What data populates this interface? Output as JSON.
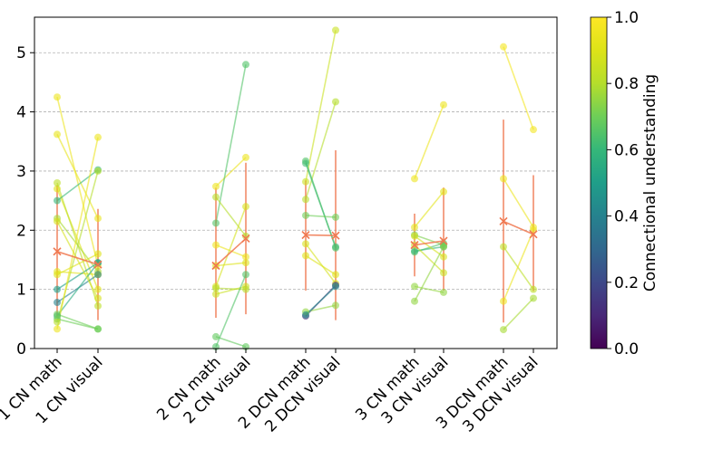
{
  "chart_data": {
    "type": "scatter",
    "ylim": [
      0,
      5.6
    ],
    "y_ticks": [
      0,
      1,
      2,
      3,
      4,
      5
    ],
    "grid": "horizontal-dashed",
    "categories": [
      "1 CN math",
      "1 CN visual",
      "2 CN math",
      "2 CN visual",
      "2 DCN math",
      "2 DCN visual",
      "3 CN math",
      "3 CN visual",
      "3 DCN math",
      "3 DCN visual"
    ],
    "colorbar": {
      "label": "Connectional understanding",
      "colormap": "viridis",
      "range": [
        0,
        1
      ],
      "ticks": [
        "0.0",
        "0.2",
        "0.4",
        "0.6",
        "0.8",
        "1.0"
      ]
    },
    "mean_color": "#f07850",
    "groups": [
      {
        "pair": [
          0,
          1
        ],
        "pairs": [
          {
            "c": 0.95,
            "y1": 4.25,
            "y2": 1.4
          },
          {
            "c": 0.93,
            "y1": 3.62,
            "y2": 2.2
          },
          {
            "c": 0.9,
            "y1": 2.7,
            "y2": 1.0
          },
          {
            "c": 0.82,
            "y1": 2.8,
            "y2": 0.72
          },
          {
            "c": 0.6,
            "y1": 2.5,
            "y2": 3.02
          },
          {
            "c": 0.78,
            "y1": 2.2,
            "y2": 1.3
          },
          {
            "c": 0.92,
            "y1": 1.3,
            "y2": 1.25
          },
          {
            "c": 0.9,
            "y1": 1.25,
            "y2": 1.6
          },
          {
            "c": 0.5,
            "y1": 1.0,
            "y2": 1.45
          },
          {
            "c": 0.4,
            "y1": 0.78,
            "y2": 1.25
          },
          {
            "c": 0.55,
            "y1": 0.55,
            "y2": 1.45
          },
          {
            "c": 0.7,
            "y1": 0.5,
            "y2": 0.33
          },
          {
            "c": 0.8,
            "y1": 0.45,
            "y2": 3.0
          },
          {
            "c": 0.95,
            "y1": 0.33,
            "y2": 3.57
          },
          {
            "c": 0.88,
            "y1": 2.15,
            "y2": 0.85
          },
          {
            "c": 0.7,
            "y1": 0.58,
            "y2": 0.33
          }
        ],
        "mean": [
          1.64,
          1.42
        ],
        "err": [
          [
            0.52,
            2.76
          ],
          [
            0.48,
            2.36
          ]
        ]
      },
      {
        "pair": [
          2,
          3
        ],
        "pairs": [
          {
            "c": 0.95,
            "y1": 2.74,
            "y2": 3.23
          },
          {
            "c": 0.65,
            "y1": 2.12,
            "y2": 4.8
          },
          {
            "c": 0.8,
            "y1": 2.56,
            "y2": 1.9
          },
          {
            "c": 0.95,
            "y1": 1.75,
            "y2": 1.55
          },
          {
            "c": 0.9,
            "y1": 1.4,
            "y2": 1.45
          },
          {
            "c": 0.88,
            "y1": 1.05,
            "y2": 2.4
          },
          {
            "c": 0.85,
            "y1": 0.92,
            "y2": 1.05
          },
          {
            "c": 0.8,
            "y1": 1.02,
            "y2": 1.0
          },
          {
            "c": 0.68,
            "y1": 0.2,
            "y2": 0.03
          },
          {
            "c": 0.65,
            "y1": 0.03,
            "y2": 1.25
          }
        ],
        "mean": [
          1.4,
          1.86
        ],
        "err": [
          [
            0.52,
            2.72
          ],
          [
            0.58,
            3.14
          ]
        ]
      },
      {
        "pair": [
          4,
          5
        ],
        "pairs": [
          {
            "c": 0.85,
            "y1": 2.82,
            "y2": 5.38
          },
          {
            "c": 0.8,
            "y1": 2.52,
            "y2": 4.17
          },
          {
            "c": 0.65,
            "y1": 3.17,
            "y2": 1.7
          },
          {
            "c": 0.62,
            "y1": 3.13,
            "y2": 1.72
          },
          {
            "c": 0.7,
            "y1": 2.25,
            "y2": 2.22
          },
          {
            "c": 0.9,
            "y1": 1.57,
            "y2": 1.25
          },
          {
            "c": 0.88,
            "y1": 1.77,
            "y2": 1.1
          },
          {
            "c": 0.1,
            "y1": 0.55,
            "y2": 1.07
          },
          {
            "c": 0.75,
            "y1": 0.62,
            "y2": 0.73
          },
          {
            "c": 0.45,
            "y1": 0.57,
            "y2": 1.05
          }
        ],
        "mean": [
          1.92,
          1.91
        ],
        "err": [
          [
            0.98,
            2.84
          ],
          [
            0.48,
            3.35
          ]
        ]
      },
      {
        "pair": [
          6,
          7
        ],
        "pairs": [
          {
            "c": 0.95,
            "y1": 2.87,
            "y2": 4.12
          },
          {
            "c": 0.92,
            "y1": 2.05,
            "y2": 2.65
          },
          {
            "c": 0.72,
            "y1": 1.92,
            "y2": 1.75
          },
          {
            "c": 0.65,
            "y1": 1.63,
            "y2": 1.78
          },
          {
            "c": 0.6,
            "y1": 1.65,
            "y2": 1.72
          },
          {
            "c": 0.85,
            "y1": 1.75,
            "y2": 1.28
          },
          {
            "c": 0.75,
            "y1": 1.05,
            "y2": 0.95
          },
          {
            "c": 0.88,
            "y1": 1.9,
            "y2": 1.55
          },
          {
            "c": 0.75,
            "y1": 0.8,
            "y2": 1.72
          }
        ],
        "mean": [
          1.75,
          1.82
        ],
        "err": [
          [
            1.22,
            2.28
          ],
          [
            0.98,
            2.72
          ]
        ]
      },
      {
        "pair": [
          8,
          9
        ],
        "pairs": [
          {
            "c": 0.97,
            "y1": 5.1,
            "y2": 3.7
          },
          {
            "c": 0.95,
            "y1": 2.87,
            "y2": 2.05
          },
          {
            "c": 0.82,
            "y1": 1.72,
            "y2": 1.0
          },
          {
            "c": 0.78,
            "y1": 0.32,
            "y2": 0.85
          },
          {
            "c": 0.95,
            "y1": 0.8,
            "y2": 2.0
          }
        ],
        "mean": [
          2.15,
          1.93
        ],
        "err": [
          [
            0.44,
            3.87
          ],
          [
            0.97,
            2.93
          ]
        ]
      }
    ]
  }
}
